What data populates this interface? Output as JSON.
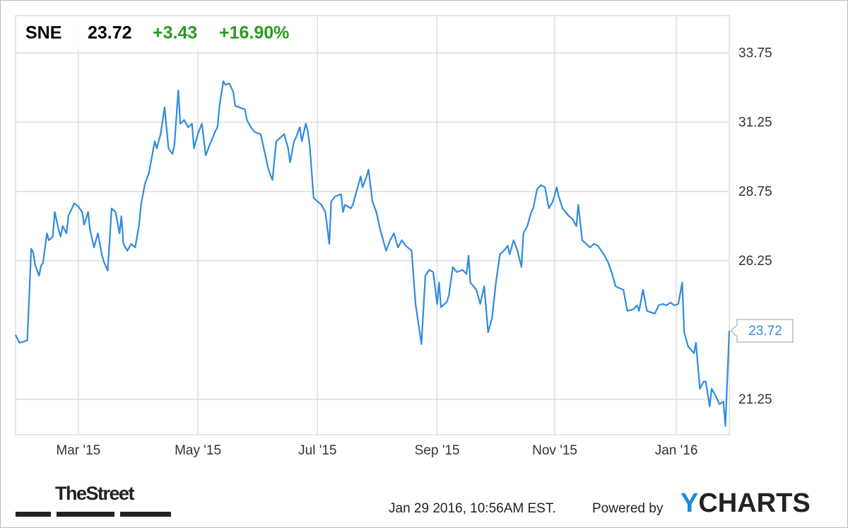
{
  "chart_data": {
    "type": "line",
    "header": {
      "symbol": "SNE",
      "change": "+3.43",
      "percent": "+16.90%"
    },
    "footer": {
      "brand": "TheStreet",
      "timestamp": "Jan 29 2016, 10:56AM EST.",
      "powered": "Powered by",
      "provider": "YCHARTS"
    },
    "x": [
      0,
      2,
      6,
      8,
      9,
      10,
      12,
      13,
      14,
      16,
      17,
      19,
      20,
      22,
      23,
      24,
      26,
      27,
      30,
      32,
      34,
      35,
      37,
      38,
      40,
      42,
      44,
      45,
      47,
      49,
      51,
      53,
      54,
      55,
      57,
      59,
      61,
      63,
      64,
      66,
      68,
      69,
      71,
      72,
      74,
      76,
      78,
      80,
      81,
      83,
      84,
      86,
      88,
      90,
      91,
      93,
      95,
      97,
      99,
      102,
      103,
      104,
      106,
      107,
      109,
      111,
      112,
      114,
      117,
      118,
      120,
      122,
      125,
      127,
      129,
      131,
      133,
      135,
      137,
      139,
      140,
      142,
      143,
      145,
      146,
      148,
      149,
      150,
      152,
      154,
      156,
      158,
      160,
      161,
      163,
      166,
      167,
      168,
      171,
      172,
      174,
      176,
      177,
      179,
      180,
      182,
      184,
      186,
      189,
      191,
      193,
      195,
      197,
      199,
      202,
      204,
      207,
      209,
      211,
      213,
      215,
      216,
      217,
      220,
      221,
      223,
      225,
      228,
      230,
      231,
      232,
      235,
      237,
      239,
      241,
      243,
      245,
      247,
      249,
      251,
      252,
      254,
      256,
      258,
      259,
      261,
      263,
      264,
      266,
      268,
      270,
      272,
      274,
      276,
      277,
      279,
      282,
      284,
      286,
      287,
      289,
      291,
      293,
      295,
      297,
      300,
      302,
      304,
      306,
      308,
      310,
      312,
      315,
      317,
      318,
      320,
      322,
      324,
      326,
      328,
      330,
      332,
      334,
      336,
      338,
      340,
      341,
      343,
      346,
      347,
      349,
      351,
      352,
      354,
      355,
      357,
      359,
      361,
      362,
      364
    ],
    "series": [
      {
        "color": "#2f8be0",
        "values": [
          23.57,
          23.29,
          23.37,
          26.68,
          26.56,
          26.1,
          25.71,
          26.07,
          26.17,
          27.24,
          26.99,
          27.12,
          28.01,
          27.37,
          27.12,
          27.5,
          27.24,
          27.88,
          28.32,
          28.21,
          28.01,
          27.55,
          28.01,
          27.37,
          26.73,
          27.24,
          26.48,
          26.22,
          25.89,
          28.14,
          28.01,
          27.24,
          27.86,
          26.86,
          26.61,
          26.86,
          26.73,
          27.55,
          28.27,
          29.03,
          29.41,
          29.8,
          30.56,
          30.31,
          30.82,
          31.79,
          30.31,
          30.1,
          30.43,
          32.4,
          31.2,
          31.33,
          31.07,
          31.2,
          30.31,
          30.82,
          31.2,
          30.05,
          30.43,
          30.94,
          31.07,
          31.84,
          32.73,
          32.6,
          32.65,
          32.35,
          31.84,
          31.79,
          31.71,
          31.33,
          31.07,
          30.89,
          30.82,
          30.18,
          29.54,
          29.16,
          30.56,
          30.69,
          30.82,
          30.31,
          29.8,
          30.56,
          30.69,
          31.07,
          30.56,
          31.2,
          30.94,
          30.43,
          28.52,
          28.39,
          28.27,
          28.01,
          26.86,
          28.39,
          28.57,
          28.65,
          28.01,
          28.27,
          28.14,
          28.27,
          28.78,
          29.29,
          28.9,
          29.29,
          29.54,
          28.39,
          28.01,
          27.37,
          26.61,
          26.99,
          27.24,
          26.73,
          26.99,
          26.79,
          26.61,
          24.69,
          23.24,
          25.71,
          25.92,
          25.84,
          24.69,
          25.46,
          24.57,
          24.77,
          25.0,
          26.02,
          25.84,
          25.92,
          25.77,
          26.43,
          25.46,
          25.2,
          24.69,
          25.33,
          23.67,
          24.18,
          25.46,
          26.48,
          26.61,
          26.79,
          26.48,
          26.99,
          26.61,
          26.02,
          27.24,
          27.5,
          28.01,
          28.14,
          28.83,
          28.98,
          28.9,
          28.14,
          28.39,
          28.9,
          28.57,
          28.14,
          27.88,
          27.76,
          27.5,
          28.27,
          26.99,
          26.86,
          26.73,
          26.86,
          26.79,
          26.48,
          26.22,
          25.84,
          25.33,
          25.26,
          25.2,
          24.44,
          24.49,
          24.64,
          24.44,
          25.2,
          24.44,
          24.39,
          24.34,
          24.64,
          24.69,
          24.64,
          24.74,
          24.64,
          24.69,
          25.46,
          23.67,
          23.16,
          22.91,
          23.29,
          21.63,
          21.89,
          21.89,
          20.99,
          21.63,
          21.38,
          21.07,
          21.17,
          20.28,
          23.72
        ]
      }
    ],
    "xlim": [
      0,
      364
    ],
    "xticks": [
      {
        "value": 32,
        "label": "Mar '15"
      },
      {
        "value": 93,
        "label": "May '15"
      },
      {
        "value": 154,
        "label": "Jul '15"
      },
      {
        "value": 215,
        "label": "Sep '15"
      },
      {
        "value": 275,
        "label": "Nov '15"
      },
      {
        "value": 337,
        "label": "Jan '16"
      }
    ],
    "ylim": [
      19.97,
      35.1
    ],
    "yticks": [
      21.25,
      26.25,
      28.75,
      31.25,
      33.75
    ],
    "grid": true
  }
}
